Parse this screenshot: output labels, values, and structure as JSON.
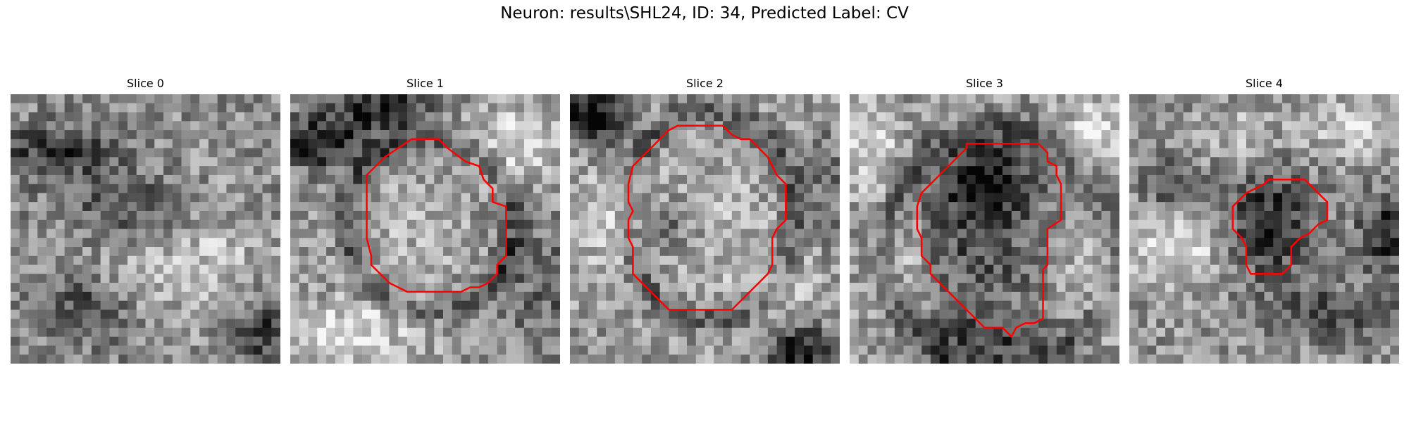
{
  "figure": {
    "title": "Neuron: results\\SHL24, ID: 34, Predicted Label: CV"
  },
  "panels": [
    {
      "title": "Slice 0",
      "has_contour": false
    },
    {
      "title": "Slice 1",
      "has_contour": true
    },
    {
      "title": "Slice 2",
      "has_contour": true
    },
    {
      "title": "Slice 3",
      "has_contour": true
    },
    {
      "title": "Slice 4",
      "has_contour": true
    }
  ],
  "colors": {
    "contour": "#ff0000",
    "background": "#ffffff"
  }
}
